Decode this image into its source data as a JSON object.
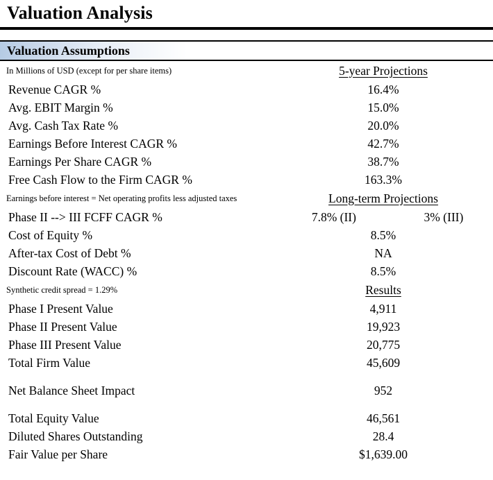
{
  "title": "Valuation Analysis",
  "section_header": "Valuation Assumptions",
  "colors": {
    "header_gradient_start": "#b5cbe4",
    "rule": "#000000",
    "text": "#000000",
    "background": "#ffffff"
  },
  "groups": [
    {
      "note": "In Millions of USD (except for per share items)",
      "header": "5-year Projections",
      "rows": [
        {
          "label": "Revenue CAGR %",
          "value": "16.4%"
        },
        {
          "label": "Avg. EBIT Margin %",
          "value": "15.0%"
        },
        {
          "label": "Avg. Cash Tax Rate %",
          "value": "20.0%"
        },
        {
          "label": "Earnings Before Interest CAGR %",
          "value": "42.7%"
        },
        {
          "label": "Earnings Per Share CAGR %",
          "value": "38.7%"
        },
        {
          "label": "Free Cash Flow to the Firm CAGR %",
          "value": "163.3%"
        }
      ]
    },
    {
      "note": "Earnings before interest = Net operating profits less adjusted taxes",
      "header": "Long-term Projections",
      "rows": [
        {
          "label": "Phase II --> III FCFF CAGR %",
          "value": "7.8% (II)",
          "value2": "3% (III)"
        },
        {
          "label": "Cost of Equity %",
          "value": "8.5%"
        },
        {
          "label": "After-tax Cost of Debt %",
          "value": "NA"
        },
        {
          "label": "Discount Rate (WACC) %",
          "value": "8.5%"
        }
      ]
    },
    {
      "note": "Synthetic credit spread = 1.29%",
      "header": "Results",
      "rows": [
        {
          "label": "Phase I Present Value",
          "value": "4,911"
        },
        {
          "label": "Phase II Present Value",
          "value": "19,923"
        },
        {
          "label": "Phase III Present Value",
          "value": "20,775"
        },
        {
          "label": "Total Firm Value",
          "value": "45,609"
        },
        {
          "spacer": true
        },
        {
          "label": "Net Balance Sheet Impact",
          "value": "952"
        },
        {
          "spacer": true
        },
        {
          "label": "Total Equity Value",
          "value": "46,561"
        },
        {
          "label": "Diluted Shares Outstanding",
          "value": "28.4"
        },
        {
          "label": "Fair Value per Share",
          "value": "$1,639.00"
        }
      ]
    }
  ]
}
